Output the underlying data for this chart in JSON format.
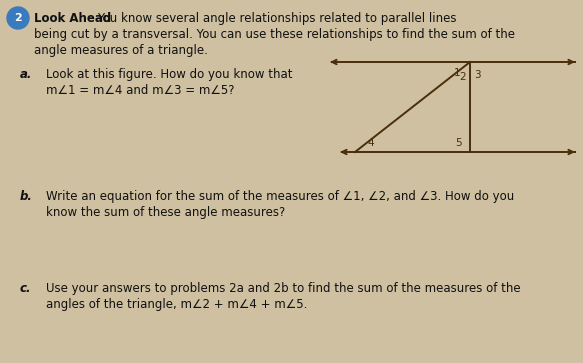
{
  "background_color": "#cec0a0",
  "circle_number": "2",
  "title_bold": "Look Ahead",
  "title_rest": "You know several angle relationships related to parallel lines",
  "title_line2": "being cut by a transversal. You can use these relationships to find the sum of the",
  "title_line3": "angle measures of a triangle.",
  "part_a_label": "a.",
  "part_a_line1": "Look at this figure. How do you know that",
  "part_a_line2": "m∠1 = m∠4 and m∠3 = m∠5?",
  "part_b_label": "b.",
  "part_b_line1": "Write an equation for the sum of the measures of ∠1, ∠2, and ∠3. How do you",
  "part_b_line2": "know the sum of these angle measures?",
  "part_c_label": "c.",
  "part_c_line1": "Use your answers to problems 2a and 2b to find the sum of the measures of the",
  "part_c_line2": "angles of the triangle, m∠2 + m∠4 + m∠5.",
  "fig_width": 5.83,
  "fig_height": 3.63,
  "line_color": "#4a2e0a",
  "text_color": "#111111",
  "circle_color": "#3a7abf"
}
